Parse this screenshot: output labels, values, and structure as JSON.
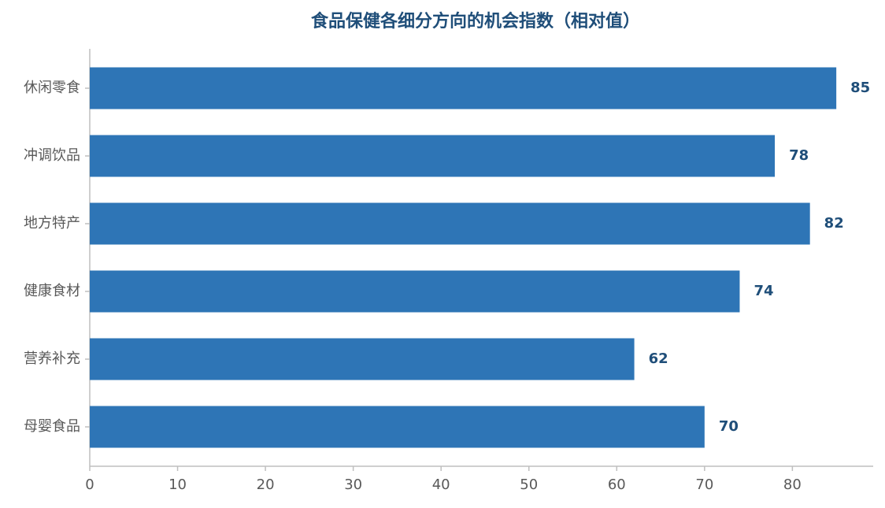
{
  "chart_data": {
    "type": "bar",
    "orientation": "horizontal",
    "title": "食品保健各细分方向的机会指数（相对值）",
    "categories": [
      "休闲零食",
      "冲调饮品",
      "地方特产",
      "健康食材",
      "营养补充",
      "母婴食品"
    ],
    "values": [
      85,
      78,
      82,
      74,
      62,
      70
    ],
    "color": "#2e75b6",
    "xlim": [
      0,
      89.2
    ],
    "xticks": [
      0,
      10,
      20,
      30,
      40,
      50,
      60,
      70,
      80
    ],
    "grid": false
  }
}
